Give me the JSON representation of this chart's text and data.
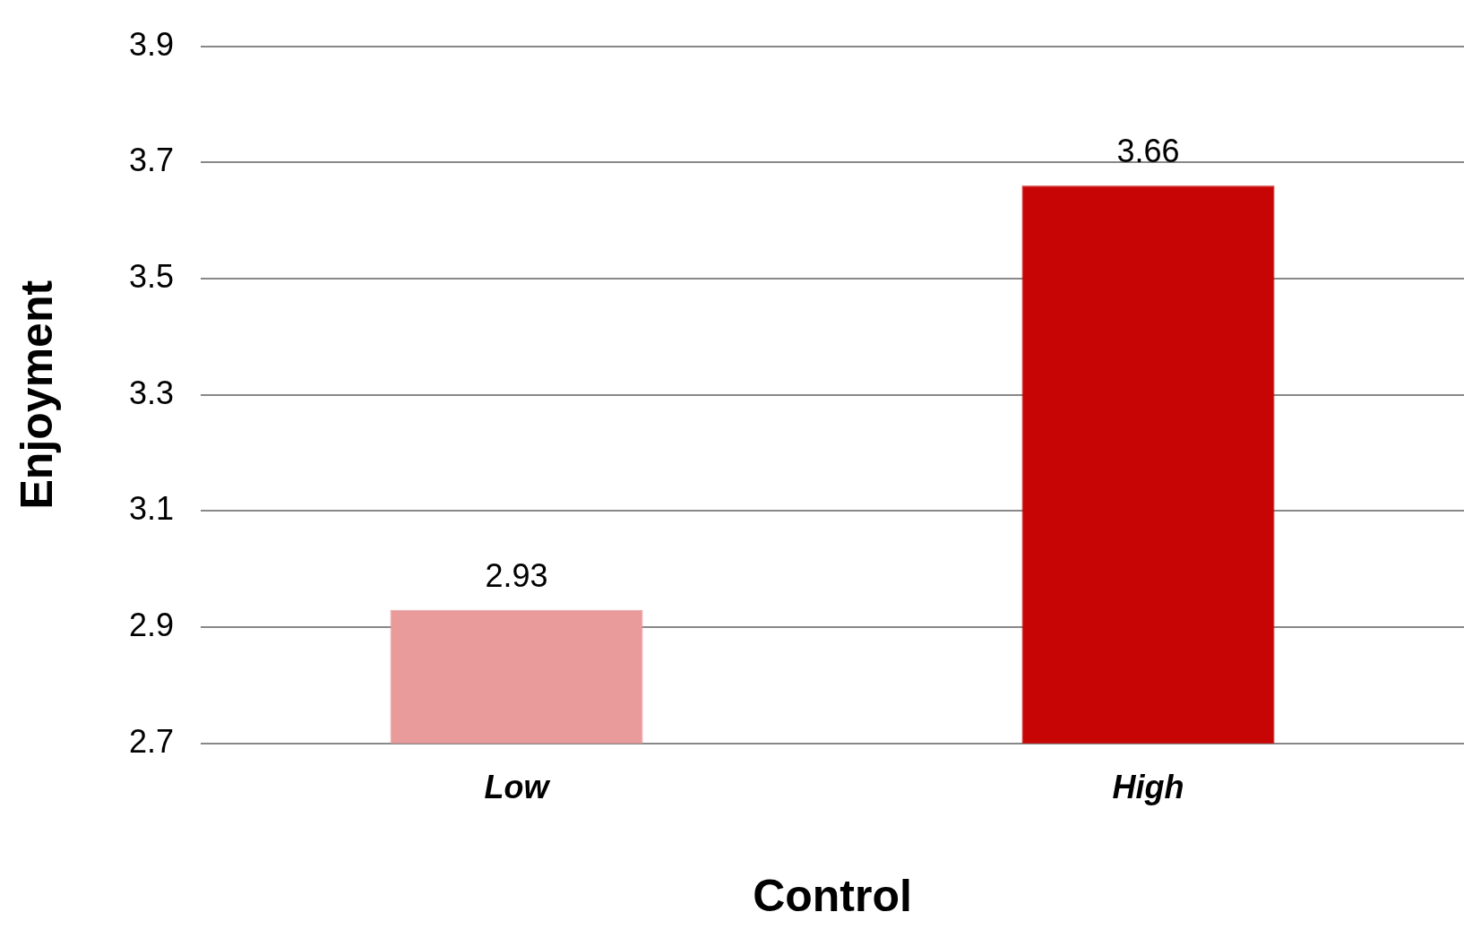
{
  "chart_data": {
    "type": "bar",
    "xlabel": "Control",
    "ylabel": "Enjoyment",
    "categories": [
      "Low",
      "High"
    ],
    "values": [
      2.93,
      3.66
    ],
    "colors": [
      "#e99a9b",
      "#c80505"
    ],
    "ylim": [
      2.7,
      3.9
    ],
    "yticks": [
      2.7,
      2.9,
      3.1,
      3.3,
      3.5,
      3.7,
      3.9
    ],
    "grid": "y",
    "legend": false,
    "data_labels": true
  }
}
